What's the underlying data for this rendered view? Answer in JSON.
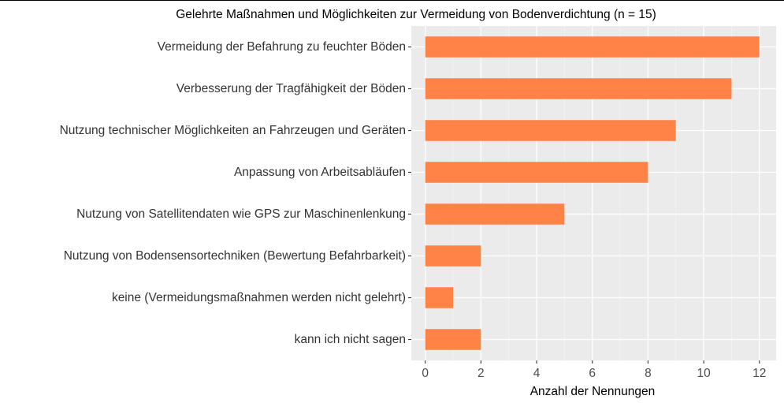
{
  "chart_data": {
    "type": "bar",
    "orientation": "horizontal",
    "title": "Gelehrte Maßnahmen und Möglichkeiten zur Vermeidung von Bodenverdichtung (n = 15)",
    "xlabel": "Anzahl der Nennungen",
    "ylabel": "",
    "categories": [
      "Vermeidung der Befahrung zu feuchter Böden",
      "Verbesserung der Tragfähigkeit der Böden",
      "Nutzung technischer Möglichkeiten an Fahrzeugen und Geräten",
      "Anpassung von Arbeitsabläufen",
      "Nutzung von Satellitendaten wie GPS zur Maschinenlenkung",
      "Nutzung von Bodensensortechniken (Bewertung Befahrbarkeit)",
      "keine (Vermeidungsmaßnahmen werden nicht gelehrt)",
      "kann ich nicht sagen"
    ],
    "values": [
      12,
      11,
      9,
      8,
      5,
      2,
      1,
      2
    ],
    "xlim": [
      -0.5,
      12.6
    ],
    "xticks": [
      0,
      2,
      4,
      6,
      8,
      10,
      12
    ],
    "grid": true,
    "legend": "none",
    "colors": {
      "bar": "#FF8247",
      "panel": "#EBEBEB",
      "grid_major": "#FFFFFF",
      "grid_minor": "#F5F5F5"
    }
  }
}
